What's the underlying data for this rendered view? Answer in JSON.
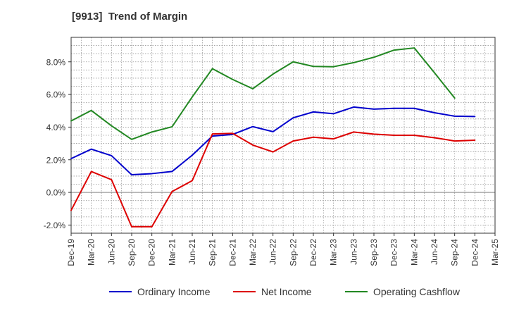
{
  "chart_data": {
    "type": "line",
    "title": "[9913]  Trend of Margin",
    "xlabel": "",
    "ylabel": "",
    "categories": [
      "Dec-19",
      "Mar-20",
      "Jun-20",
      "Sep-20",
      "Dec-20",
      "Mar-21",
      "Jun-21",
      "Sep-21",
      "Dec-21",
      "Mar-22",
      "Jun-22",
      "Sep-22",
      "Dec-22",
      "Mar-23",
      "Jun-23",
      "Sep-23",
      "Dec-23",
      "Mar-24",
      "Jun-24",
      "Sep-24",
      "Dec-24",
      "Mar-25"
    ],
    "ylim": [
      -2.5,
      9.5
    ],
    "yticks": [
      -2.0,
      0.0,
      2.0,
      4.0,
      6.0,
      8.0
    ],
    "ytick_labels": [
      "-2.0%",
      "0.0%",
      "2.0%",
      "4.0%",
      "6.0%",
      "8.0%"
    ],
    "grid": true,
    "legend_position": "bottom",
    "series": [
      {
        "name": "Ordinary Income",
        "color": "#0000cc",
        "values": [
          2.07,
          2.65,
          2.25,
          1.08,
          1.15,
          1.28,
          2.28,
          3.45,
          3.55,
          4.03,
          3.72,
          4.57,
          4.93,
          4.82,
          5.23,
          5.1,
          5.15,
          5.15,
          4.88,
          4.67,
          4.65,
          null
        ]
      },
      {
        "name": "Net Income",
        "color": "#dd0000",
        "values": [
          -1.1,
          1.28,
          0.78,
          -2.1,
          -2.1,
          0.05,
          0.72,
          3.58,
          3.62,
          2.9,
          2.48,
          3.15,
          3.38,
          3.28,
          3.7,
          3.57,
          3.5,
          3.5,
          3.35,
          3.15,
          3.2,
          null
        ]
      },
      {
        "name": "Operating Cashflow",
        "color": "#228822",
        "values": [
          4.38,
          5.02,
          4.08,
          3.25,
          3.7,
          4.02,
          5.85,
          7.58,
          6.92,
          6.35,
          7.25,
          8.0,
          7.72,
          7.7,
          7.95,
          8.28,
          8.72,
          8.85,
          7.33,
          5.78,
          null,
          null
        ]
      }
    ]
  }
}
